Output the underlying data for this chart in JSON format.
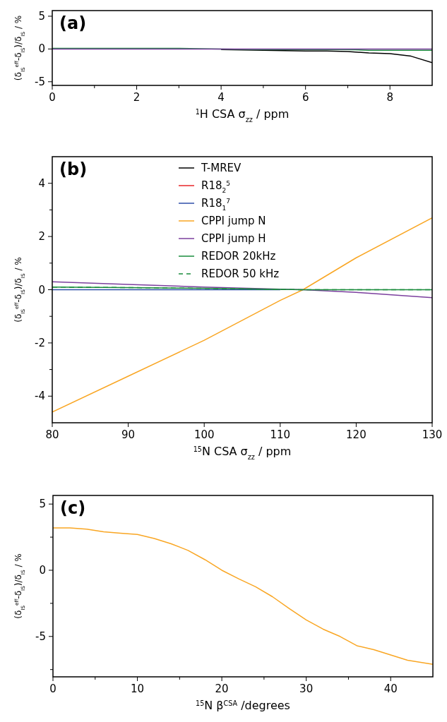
{
  "chart_data": [
    {
      "type": "line",
      "title": "(a)",
      "xlabel": "$^{1}$H CSA σ$_{zz}$ / ppm",
      "ylabel": "(δ$_{IS}$$^{eff}$-δ$_{IS}$)/δ$_{IS}$ / %",
      "xlim": [
        0,
        9
      ],
      "ylim": [
        -5.56,
        5.86
      ],
      "xticks": [
        0,
        {
          "value": 1,
          "label": null
        },
        2,
        {
          "value": 3,
          "label": null
        },
        4,
        {
          "value": 5,
          "label": null
        },
        6,
        {
          "value": 7,
          "label": null
        },
        8
      ],
      "yticks": [
        -5,
        0,
        5
      ],
      "grid": false,
      "legend": false,
      "x": [
        0,
        1,
        2,
        3,
        4,
        5,
        6,
        6.5,
        7,
        7.5,
        8,
        8.5,
        9
      ],
      "series": [
        {
          "color": "#000000",
          "values": [
            null,
            null,
            null,
            null,
            -0.1,
            -0.2,
            -0.3,
            -0.3,
            -0.4,
            -0.6,
            -0.7,
            -1.1,
            -2.1
          ]
        },
        {
          "color": "#1a8c3c",
          "values": [
            0.1,
            0.1,
            0.1,
            0.1,
            0,
            -0.1,
            -0.1,
            -0.1,
            -0.1,
            -0.2,
            -0.2,
            -0.2,
            -0.2
          ]
        },
        {
          "color": "#7b3f9e",
          "values": [
            0,
            0,
            0,
            0,
            0,
            0,
            0,
            0,
            0,
            0,
            0,
            0,
            0
          ]
        }
      ]
    },
    {
      "type": "line",
      "title": "(b)",
      "xlabel": "$^{15}$N CSA σ$_{zz}$ / ppm",
      "ylabel": "(δ$_{IS}$$^{eff}$-δ$_{IS}$)/δ$_{IS}$ / %",
      "xlim": [
        80,
        130
      ],
      "ylim": [
        -5,
        5
      ],
      "xticks": [
        80,
        90,
        100,
        110,
        120,
        130
      ],
      "yticks": [
        -4,
        {
          "value": -3,
          "label": null
        },
        -2,
        {
          "value": -1,
          "label": null
        },
        0,
        {
          "value": 1,
          "label": null
        },
        2,
        {
          "value": 3,
          "label": null
        },
        4
      ],
      "grid": false,
      "legend": "top",
      "x": [
        80,
        90,
        100,
        110,
        113,
        120,
        130
      ],
      "series": [
        {
          "name": "T-MREV",
          "color": "#000000",
          "values": [
            null,
            null,
            null,
            null,
            null,
            null,
            null
          ]
        },
        {
          "name": "R18$_{2}$$^{5}$",
          "color": "#e8262a",
          "values": [
            null,
            null,
            null,
            null,
            null,
            null,
            null
          ]
        },
        {
          "name": "R18$_{1}$$^{7}$",
          "color": "#2e4fa8",
          "values": [
            0,
            0,
            0,
            0,
            null,
            null,
            null
          ]
        },
        {
          "name": "CPPI jump N",
          "color": "#f9a623",
          "values": [
            -4.6,
            -3.25,
            -1.9,
            -0.4,
            0,
            1.2,
            2.7
          ]
        },
        {
          "name": "CPPI jump H",
          "color": "#7b3f9e",
          "values": [
            0.3,
            0.2,
            0.1,
            0.02,
            0,
            -0.1,
            -0.3
          ]
        },
        {
          "name": "REDOR 20kHz",
          "color": "#1a8c3c",
          "values": [
            0.1,
            0.08,
            0.05,
            0.01,
            0,
            0,
            0
          ]
        },
        {
          "name": "REDOR 50 kHz",
          "color": "#1a8c3c",
          "line_style": "dashed",
          "values": [
            0.1,
            0.08,
            0.05,
            0.01,
            0,
            0,
            0
          ]
        }
      ]
    },
    {
      "type": "line",
      "title": "(c)",
      "xlabel": "$^{15}$N β$^{CSA}$ /degrees",
      "ylabel": "(δ$_{IS}$$^{eff}$-δ$_{IS}$)/δ$_{IS}$ / %",
      "xlim": [
        0,
        45
      ],
      "ylim": [
        -8.05,
        5.65
      ],
      "xticks": [
        0,
        {
          "value": 5,
          "label": null
        },
        10,
        {
          "value": 15,
          "label": null
        },
        20,
        {
          "value": 25,
          "label": null
        },
        30,
        {
          "value": 35,
          "label": null
        },
        40
      ],
      "yticks": [
        {
          "value": -7.5,
          "label": null
        },
        -5,
        {
          "value": -2.5,
          "label": null
        },
        0,
        {
          "value": 2.5,
          "label": null
        },
        5
      ],
      "grid": false,
      "legend": false,
      "x": [
        0,
        2,
        4,
        6,
        8,
        10,
        12,
        14,
        16,
        18,
        20,
        22,
        24,
        26,
        28,
        30,
        32,
        34,
        36,
        38,
        40,
        42,
        45
      ],
      "series": [
        {
          "color": "#f9a623",
          "values": [
            3.2,
            3.2,
            3.1,
            2.9,
            2.8,
            2.7,
            2.4,
            2.0,
            1.5,
            0.8,
            0.0,
            -0.65,
            -1.25,
            -2.0,
            -2.9,
            -3.75,
            -4.45,
            -5.0,
            -5.7,
            -6.0,
            -6.4,
            -6.8,
            -7.1
          ]
        }
      ]
    }
  ]
}
